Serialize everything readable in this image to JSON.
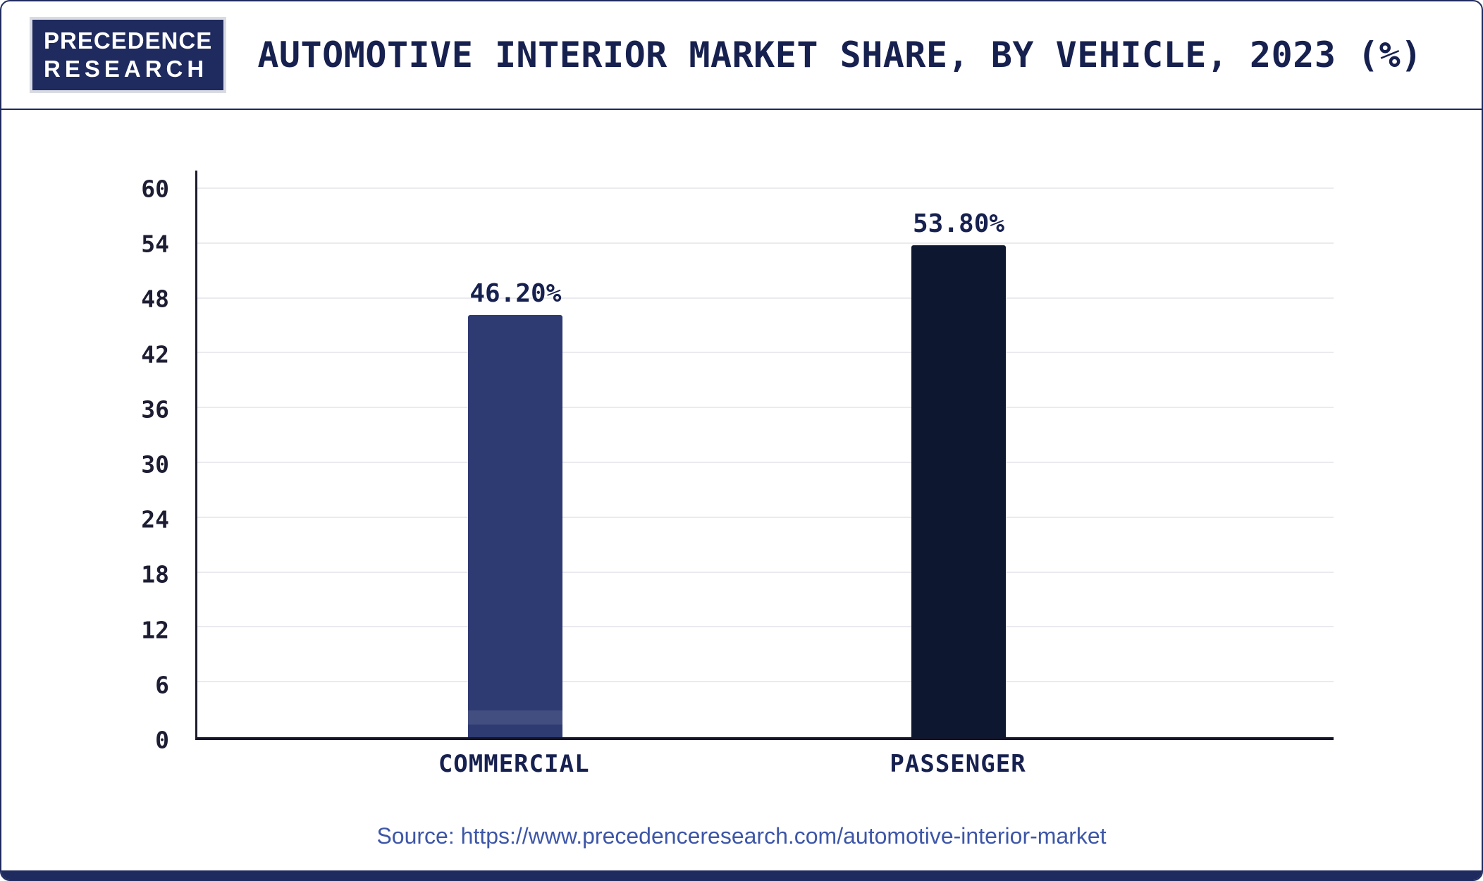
{
  "brand": {
    "line1": "PRECEDENCE",
    "line2": "RESEARCH"
  },
  "header": {
    "title": "AUTOMOTIVE INTERIOR MARKET SHARE, BY VEHICLE, 2023 (%)"
  },
  "source": {
    "prefix": "Source: ",
    "url": "https://www.precedenceresearch.com/automotive-interior-market"
  },
  "colors": {
    "accent_navy": "#1f2a5e",
    "title_text": "#17214f",
    "source_text": "#3d56a8",
    "bar_commercial": "#2e3a72",
    "bar_passenger": "#0e1730",
    "gridline": "#eaeaef"
  },
  "chart_data": {
    "type": "bar",
    "title": "AUTOMOTIVE INTERIOR MARKET SHARE, BY VEHICLE, 2023 (%)",
    "categories": [
      "COMMERCIAL",
      "PASSENGER"
    ],
    "values": [
      46.2,
      53.8
    ],
    "value_labels": [
      "46.20%",
      "53.80%"
    ],
    "xlabel": "",
    "ylabel": "",
    "ylim": [
      0,
      62
    ],
    "yticks": [
      0,
      6,
      12,
      18,
      24,
      30,
      36,
      42,
      48,
      54,
      60
    ],
    "grid": true,
    "legend": false,
    "bar_colors": [
      "#2e3a72",
      "#0e1730"
    ]
  }
}
